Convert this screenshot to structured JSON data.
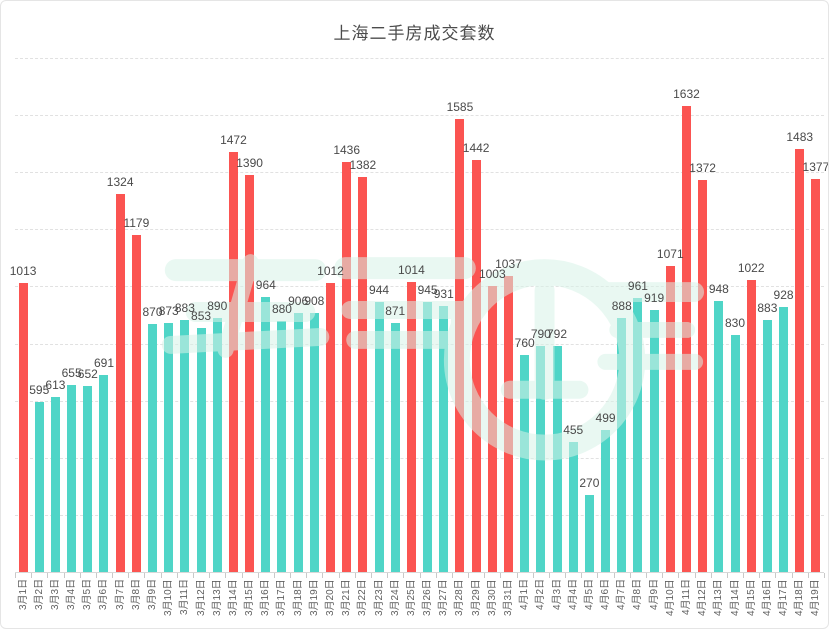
{
  "page": {
    "title": "上海二手房成交套数"
  },
  "chart_data": {
    "type": "bar",
    "title": "上海二手房成交套数",
    "categories": [
      "3月1日",
      "3月2日",
      "3月3日",
      "3月4日",
      "3月5日",
      "3月6日",
      "3月7日",
      "3月8日",
      "3月9日",
      "3月10日",
      "3月11日",
      "3月12日",
      "3月13日",
      "3月14日",
      "3月15日",
      "3月16日",
      "3月17日",
      "3月18日",
      "3月19日",
      "3月20日",
      "3月21日",
      "3月22日",
      "3月23日",
      "3月24日",
      "3月25日",
      "3月26日",
      "3月27日",
      "3月28日",
      "3月29日",
      "3月30日",
      "3月31日",
      "4月1日",
      "4月2日",
      "4月3日",
      "4月4日",
      "4月5日",
      "4月6日",
      "4月7日",
      "4月8日",
      "4月9日",
      "4月10日",
      "4月11日",
      "4月12日",
      "4月13日",
      "4月14日",
      "4月15日",
      "4月16日",
      "4月17日",
      "4月18日",
      "4月19日"
    ],
    "values": [
      1013,
      595,
      613,
      655,
      652,
      691,
      1324,
      1179,
      870,
      873,
      883,
      853,
      890,
      1472,
      1390,
      964,
      880,
      906,
      908,
      1012,
      1436,
      1382,
      944,
      871,
      1014,
      945,
      931,
      1585,
      1442,
      1003,
      1037,
      760,
      790,
      792,
      455,
      270,
      499,
      888,
      961,
      919,
      1071,
      1632,
      1372,
      948,
      830,
      1022,
      883,
      928,
      1483,
      1377
    ],
    "xlabel": "",
    "ylabel": "",
    "ylim": [
      0,
      1800
    ],
    "grid_interval": 200,
    "grid": "horizontal dashed gridlines, no y-axis tick labels",
    "legend_position": "none",
    "value_labels": "shown above every bar",
    "x_label_rotation": -90,
    "color_threshold": 1000,
    "color_high": "#fb5451",
    "color_normal": "#4fd5c7",
    "title_color": "#4c4c4c",
    "watermark_color": "#d8f3e8"
  }
}
